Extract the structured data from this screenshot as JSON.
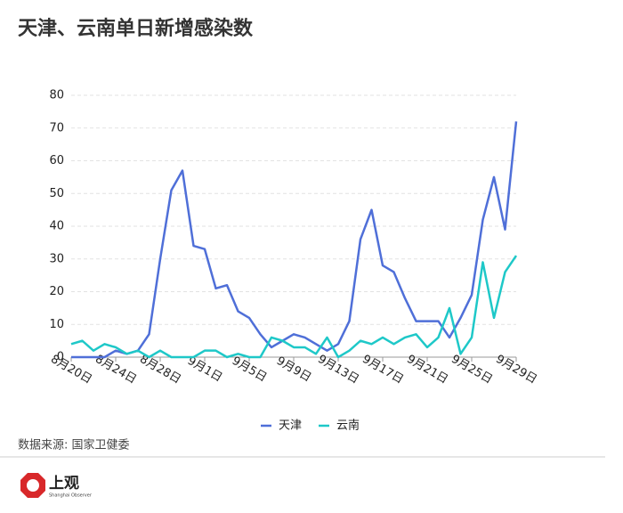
{
  "chart_data": {
    "type": "line",
    "title": "天津、云南单日新增感染数",
    "categories": [
      "8月20日",
      null,
      null,
      null,
      "8月24日",
      null,
      null,
      null,
      "8月28日",
      null,
      null,
      null,
      "9月1日",
      null,
      null,
      null,
      "9月5日",
      null,
      null,
      null,
      "9月9日",
      null,
      null,
      null,
      "9月13日",
      null,
      null,
      null,
      "9月17日",
      null,
      null,
      null,
      "9月21日",
      null,
      null,
      null,
      "9月25日",
      null,
      null,
      null,
      "9月29日"
    ],
    "series": [
      {
        "name": "天津",
        "color": "#4f6fd8",
        "values": [
          0,
          0,
          0,
          0,
          2,
          1,
          2,
          7,
          30,
          51,
          57,
          34,
          33,
          21,
          22,
          14,
          12,
          7,
          3,
          5,
          7,
          6,
          4,
          2,
          4,
          11,
          36,
          45,
          28,
          26,
          18,
          11,
          11,
          11,
          6,
          12,
          19,
          42,
          55,
          39,
          72
        ]
      },
      {
        "name": "云南",
        "color": "#1ec8c8",
        "values": [
          4,
          5,
          2,
          4,
          3,
          1,
          2,
          0,
          2,
          0,
          0,
          0,
          2,
          2,
          0,
          1,
          0,
          0,
          6,
          5,
          3,
          3,
          1,
          6,
          0,
          2,
          5,
          4,
          6,
          4,
          6,
          7,
          3,
          6,
          15,
          1,
          6,
          29,
          12,
          26,
          31
        ]
      }
    ],
    "ylim": [
      0,
      80
    ],
    "yticks": [
      0,
      10,
      20,
      30,
      40,
      50,
      60,
      70,
      80
    ],
    "grid": true,
    "legend": "bottom"
  },
  "footer": {
    "source": "数据来源: 国家卫健委",
    "brand": "上观",
    "brand_en": "Shanghai Observer"
  }
}
